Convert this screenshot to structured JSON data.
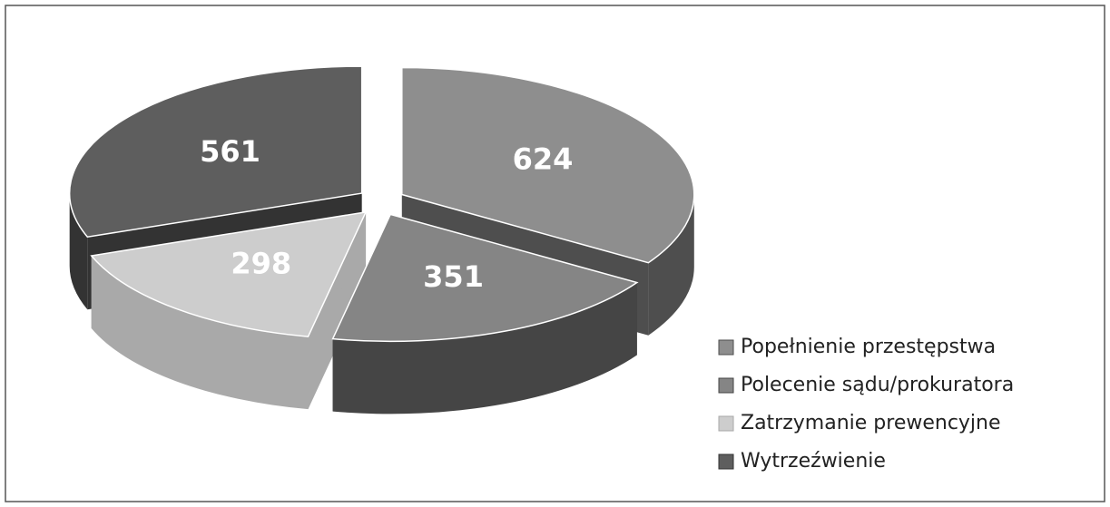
{
  "chart_data": {
    "type": "pie3d",
    "categories": [
      "Popełnienie przestępstwa",
      "Polecenie sądu/prokuratora",
      "Zatrzymanie prewencyjne",
      "Wytrzeźwienie"
    ],
    "values": [
      624,
      351,
      298,
      561
    ],
    "colors": [
      "#8e8e8e",
      "#858585",
      "#cdcdcd",
      "#5e5e5e"
    ],
    "side_colors": [
      "#4e4e4e",
      "#454545",
      "#a9a9a9",
      "#333333"
    ],
    "legend": "right"
  }
}
